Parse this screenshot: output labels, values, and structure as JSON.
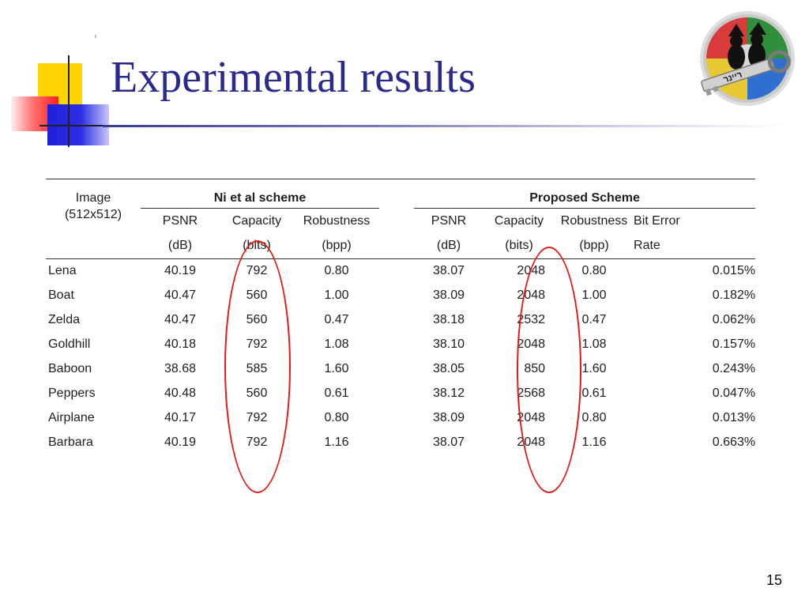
{
  "slide": {
    "title": "Experimental results",
    "page_number": "15"
  },
  "logo": {
    "name": "keyholders-logo",
    "text": "ריינר",
    "colors": [
      "#d93a3a",
      "#2f8f3a",
      "#2f6fd0",
      "#e8c830"
    ]
  },
  "table": {
    "image_header_line1": "Image",
    "image_header_line2": "(512x512)",
    "group_ni": "Ni et al scheme",
    "group_proposed": "Proposed Scheme",
    "sub_headers": {
      "ni_psnr": "PSNR",
      "ni_capacity": "Capacity",
      "ni_robustness": "Robustness",
      "pr_psnr": "PSNR",
      "pr_capacity": "Capacity",
      "pr_robustness": "Robustness",
      "pr_ber": "Bit Error"
    },
    "unit_headers": {
      "ni_psnr": "(dB)",
      "ni_capacity": "(bits)",
      "ni_robustness": "(bpp)",
      "pr_psnr": "(dB)",
      "pr_capacity": "(bits)",
      "pr_robustness": "(bpp)",
      "pr_ber": "Rate"
    },
    "rows": [
      {
        "image": "Lena",
        "ni_psnr": "40.19",
        "ni_capacity": "792",
        "ni_robustness": "0.80",
        "pr_psnr": "38.07",
        "pr_capacity": "2048",
        "pr_robustness": "0.80",
        "pr_ber": "0.015%"
      },
      {
        "image": "Boat",
        "ni_psnr": "40.47",
        "ni_capacity": "560",
        "ni_robustness": "1.00",
        "pr_psnr": "38.09",
        "pr_capacity": "2048",
        "pr_robustness": "1.00",
        "pr_ber": "0.182%"
      },
      {
        "image": "Zelda",
        "ni_psnr": "40.47",
        "ni_capacity": "560",
        "ni_robustness": "0.47",
        "pr_psnr": "38.18",
        "pr_capacity": "2532",
        "pr_robustness": "0.47",
        "pr_ber": "0.062%"
      },
      {
        "image": "Goldhill",
        "ni_psnr": "40.18",
        "ni_capacity": "792",
        "ni_robustness": "1.08",
        "pr_psnr": "38.10",
        "pr_capacity": "2048",
        "pr_robustness": "1.08",
        "pr_ber": "0.157%"
      },
      {
        "image": "Baboon",
        "ni_psnr": "38.68",
        "ni_capacity": "585",
        "ni_robustness": "1.60",
        "pr_psnr": "38.05",
        "pr_capacity": "850",
        "pr_robustness": "1.60",
        "pr_ber": "0.243%"
      },
      {
        "image": "Peppers",
        "ni_psnr": "40.48",
        "ni_capacity": "560",
        "ni_robustness": "0.61",
        "pr_psnr": "38.12",
        "pr_capacity": "2568",
        "pr_robustness": "0.61",
        "pr_ber": "0.047%"
      },
      {
        "image": "Airplane",
        "ni_psnr": "40.17",
        "ni_capacity": "792",
        "ni_robustness": "0.80",
        "pr_psnr": "38.09",
        "pr_capacity": "2048",
        "pr_robustness": "0.80",
        "pr_ber": "0.013%"
      },
      {
        "image": "Barbara",
        "ni_psnr": "40.19",
        "ni_capacity": "792",
        "ni_robustness": "1.16",
        "pr_psnr": "38.07",
        "pr_capacity": "2048",
        "pr_robustness": "1.16",
        "pr_ber": "0.663%"
      }
    ]
  },
  "annotations": {
    "highlight_color": "#e01818",
    "highlighted_columns": [
      "ni_capacity",
      "pr_capacity"
    ]
  }
}
